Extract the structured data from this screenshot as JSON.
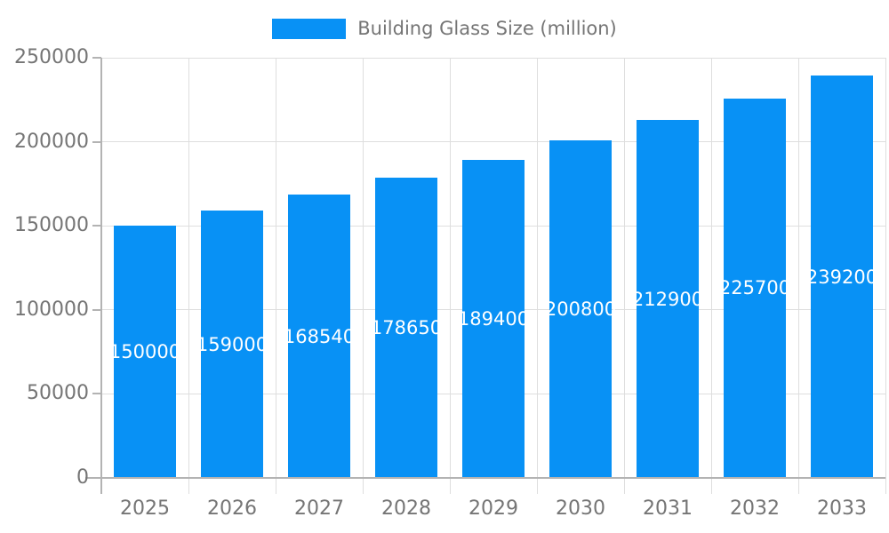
{
  "legend": {
    "label": "Building Glass Size (million)"
  },
  "chart_data": {
    "type": "bar",
    "title": "Building Glass Size (million)",
    "categories": [
      "2025",
      "2026",
      "2027",
      "2028",
      "2029",
      "2030",
      "2031",
      "2032",
      "2033"
    ],
    "series": [
      {
        "name": "Building Glass Size (million)",
        "values": [
          150000,
          159000,
          168540,
          178650,
          189400,
          200800,
          212900,
          225700,
          239200
        ]
      }
    ],
    "data_labels": [
      "150000",
      "159000",
      "168540",
      "178650",
      "189400",
      "200800",
      "212900",
      "225700",
      "239200"
    ],
    "xlabel": "",
    "ylabel": "",
    "ylim": [
      0,
      250000
    ],
    "yticks": [
      0,
      50000,
      100000,
      150000,
      200000,
      250000
    ],
    "grid": true,
    "legend_position": "top",
    "colors": {
      "bar": "#0891f5",
      "bar_label": "#ffffff",
      "grid": "#dedede",
      "axis": "#b3b3b3",
      "text": "#757575",
      "background": "#ffffff"
    }
  }
}
